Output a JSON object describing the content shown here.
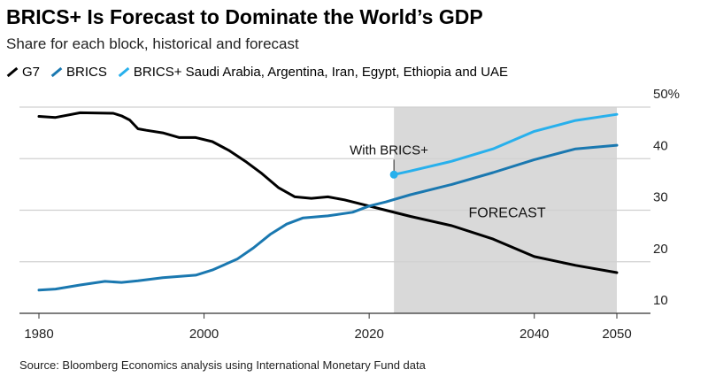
{
  "title": "BRICS+ Is Forecast to Dominate the World’s GDP",
  "subtitle": "Share for each block, historical and forecast",
  "source": "Source: Bloomberg Economics analysis using International Monetary Fund data",
  "chart_data": {
    "type": "line",
    "xlim": [
      1980,
      2050
    ],
    "ylim": [
      10,
      50
    ],
    "y_unit": "%",
    "x_ticks": [
      "1980",
      "2000",
      "2020",
      "2040",
      "2050"
    ],
    "y_ticks": [
      "50%",
      "40",
      "30",
      "20",
      "10"
    ],
    "grid": true,
    "legend_placement": "top-left",
    "forecast_region": {
      "start": 2023,
      "end": 2050,
      "label": "FORECAST",
      "color": "#d9d9d9"
    },
    "annotation": {
      "text": "With BRICS+",
      "x": 2023,
      "y": 36.9
    },
    "series": [
      {
        "name": "G7",
        "color": "#000000",
        "x": [
          1980,
          1982,
          1985,
          1989,
          1990,
          1991,
          1992,
          1993,
          1995,
          1997,
          1999,
          2001,
          2003,
          2005,
          2007,
          2009,
          2011,
          2013,
          2015,
          2017,
          2020,
          2022,
          2025,
          2030,
          2035,
          2040,
          2045,
          2050
        ],
        "y": [
          48.2,
          48.0,
          48.9,
          48.8,
          48.3,
          47.5,
          45.8,
          45.5,
          45.0,
          44.1,
          44.1,
          43.3,
          41.6,
          39.5,
          37.1,
          34.4,
          32.6,
          32.3,
          32.6,
          32.0,
          30.8,
          30.0,
          28.8,
          27.0,
          24.4,
          21.0,
          19.3,
          17.9
        ]
      },
      {
        "name": "BRICS",
        "color": "#1a78b0",
        "x": [
          1980,
          1982,
          1985,
          1988,
          1990,
          1992,
          1995,
          1999,
          2001,
          2004,
          2006,
          2008,
          2010,
          2012,
          2015,
          2018,
          2020,
          2022,
          2025,
          2030,
          2035,
          2040,
          2045,
          2050
        ],
        "y": [
          14.5,
          14.7,
          15.5,
          16.2,
          16.0,
          16.3,
          16.9,
          17.4,
          18.4,
          20.5,
          22.7,
          25.3,
          27.3,
          28.5,
          28.9,
          29.6,
          30.8,
          31.6,
          33.0,
          35.0,
          37.3,
          39.8,
          41.9,
          42.6
        ]
      },
      {
        "name": "BRICS+ Saudi Arabia, Argentina, Iran, Egypt, Ethiopia and UAE",
        "color": "#28b0ec",
        "x": [
          2023,
          2025,
          2030,
          2035,
          2040,
          2045,
          2050
        ],
        "y": [
          36.9,
          37.6,
          39.5,
          41.9,
          45.3,
          47.4,
          48.6
        ]
      }
    ]
  }
}
